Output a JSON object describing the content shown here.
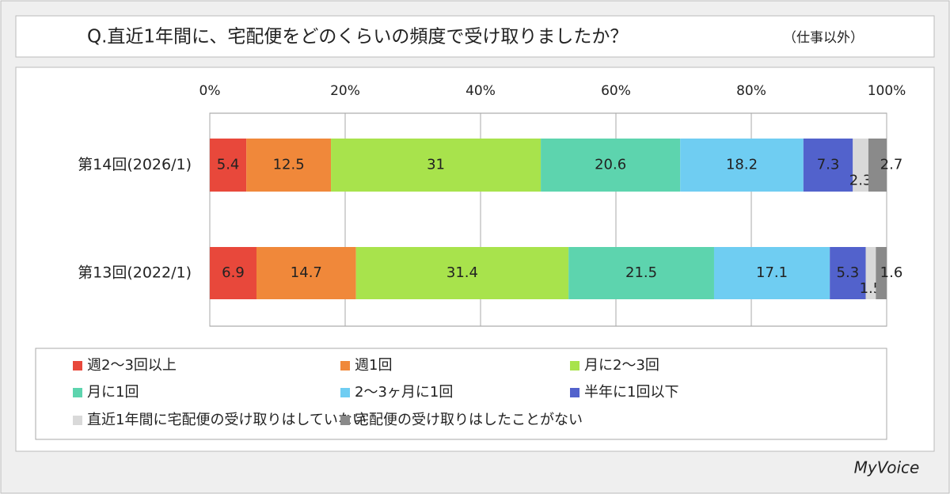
{
  "chart_data": {
    "type": "stacked_bar_horizontal",
    "title": "Q.直近1年間に、宅配便をどのくらいの頻度で受け取りましたか？",
    "subtitle": "（仕事以外）",
    "brand": "MyVoice",
    "categories": [
      "第14回(2026/1)",
      "第13回(2022/1)"
    ],
    "xlim": [
      0,
      100
    ],
    "xticks": [
      {
        "value": 0,
        "label": "0%"
      },
      {
        "value": 20,
        "label": "20%"
      },
      {
        "value": 40,
        "label": "40%"
      },
      {
        "value": 60,
        "label": "60%"
      },
      {
        "value": 80,
        "label": "80%"
      },
      {
        "value": 100,
        "label": "100%"
      }
    ],
    "grid": true,
    "series": [
      {
        "name": "週2～3回以上",
        "color": "#e8483b",
        "values": [
          5.4,
          6.9
        ]
      },
      {
        "name": "週1回",
        "color": "#f0883a",
        "values": [
          12.5,
          14.7
        ]
      },
      {
        "name": "月に2～3回",
        "color": "#a8e34c",
        "values": [
          31.0,
          31.4
        ]
      },
      {
        "name": "月に1回",
        "color": "#5dd4ae",
        "values": [
          20.6,
          21.5
        ]
      },
      {
        "name": "2～3ヶ月に1回",
        "color": "#6fcdf2",
        "values": [
          18.2,
          17.1
        ]
      },
      {
        "name": "半年に1回以下",
        "color": "#5262cc",
        "values": [
          7.3,
          5.3
        ]
      },
      {
        "name": "直近1年間に宅配便の受け取りはしていない",
        "color": "#d9d9d9",
        "values": [
          2.3,
          1.5
        ]
      },
      {
        "name": "宅配便の受け取りはしたことがない",
        "color": "#8a8a8a",
        "values": [
          2.7,
          1.6
        ]
      }
    ]
  }
}
